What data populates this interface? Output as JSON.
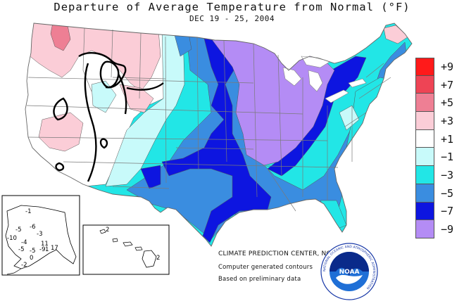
{
  "header": {
    "title": "Departure of Average Temperature from Normal (°F)",
    "date_range": "DEC 19 - 25, 2004"
  },
  "legend": {
    "items": [
      {
        "label": "+9",
        "color": "#ff1a1a"
      },
      {
        "label": "+7",
        "color": "#ee4455"
      },
      {
        "label": "+5",
        "color": "#ee7f94"
      },
      {
        "label": "+3",
        "color": "#fbcdd7"
      },
      {
        "label": "+1",
        "color": "#ffffff"
      },
      {
        "label": "−1",
        "color": "#c8fafa"
      },
      {
        "label": "−3",
        "color": "#22e6e6"
      },
      {
        "label": "−5",
        "color": "#3a8de0"
      },
      {
        "label": "−7",
        "color": "#0d15e0"
      },
      {
        "label": "−9",
        "color": "#b48cf5"
      }
    ]
  },
  "credits": {
    "center": "CLIMATE PREDICTION CENTER, NOAA",
    "contours": "Computer generated contours",
    "data_note": "Based on preliminary data"
  },
  "alaska_inset": {
    "labels": [
      "-1",
      "-5",
      "-6",
      "-3",
      "-10",
      "-4",
      "-5",
      "1",
      "-5",
      "-9",
      "11",
      "17",
      "-2",
      "0"
    ]
  },
  "hawaii_inset": {
    "labels": [
      "2",
      "2"
    ]
  },
  "logo": {
    "text": "NOAA",
    "ring_text": "NATIONAL OCEANIC AND ATMOSPHERIC ADMINISTRATION"
  },
  "colors": {
    "pos_3": "#fbcdd7",
    "pos_5": "#ee7f94",
    "pos_1": "#ffffff",
    "neg_1": "#c8fafa",
    "neg_3": "#22e6e6",
    "neg_5": "#3a8de0",
    "neg_7": "#0d15e0",
    "neg_9": "#b48cf5",
    "land_outline": "#888888"
  }
}
